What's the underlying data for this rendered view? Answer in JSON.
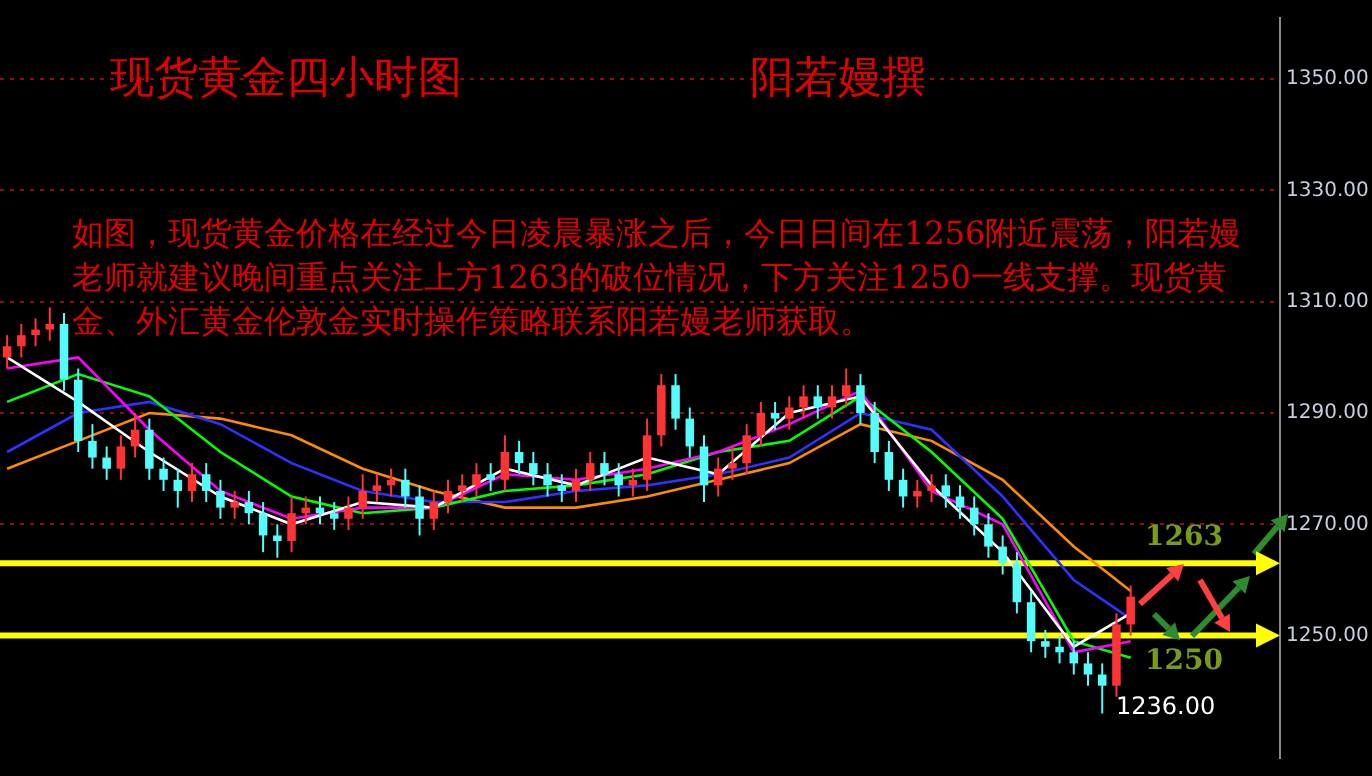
{
  "chart_data": {
    "type": "candlestick",
    "title": "现货黄金四小时图",
    "subtitle": "阳若嫚撰",
    "annotations": [
      "如图，现货黄金价格在经过今日凌晨暴涨之后，今日日间在1256附近震荡，阳若嫚老师就建议晚间重点关注上方1263的破位情况，下方关注1250一线支撑。现货黄金、外汇黄金伦敦金实时操作策略联系阳若嫚老师获取。",
      "1236.00"
    ],
    "categories": [
      null,
      null,
      null,
      null,
      null,
      null,
      null,
      null,
      null,
      null,
      null,
      null,
      null,
      null,
      null,
      null,
      null,
      null,
      null,
      null,
      null,
      null,
      null,
      null,
      null,
      null,
      null,
      null,
      null,
      null,
      null,
      null,
      null,
      null,
      null,
      null,
      null,
      null,
      null,
      null,
      null,
      null,
      null,
      null,
      null,
      null,
      null,
      null,
      null,
      null,
      null,
      null,
      null,
      null,
      null,
      null,
      null,
      null,
      null,
      null,
      null,
      null,
      null,
      null,
      null,
      null,
      null,
      null,
      null,
      null,
      null,
      null,
      null,
      null,
      null,
      null,
      null,
      null,
      null,
      null,
      null,
      null,
      null,
      null,
      null,
      null,
      null,
      null,
      null,
      null
    ],
    "ohlc": [
      [
        1300,
        1304,
        1298,
        1302
      ],
      [
        1302,
        1306,
        1300,
        1304
      ],
      [
        1304,
        1307,
        1302,
        1305
      ],
      [
        1305,
        1309,
        1303,
        1306
      ],
      [
        1306,
        1308,
        1294,
        1296
      ],
      [
        1296,
        1298,
        1283,
        1285
      ],
      [
        1285,
        1288,
        1280,
        1282
      ],
      [
        1282,
        1284,
        1278,
        1280
      ],
      [
        1280,
        1286,
        1278,
        1284
      ],
      [
        1284,
        1290,
        1282,
        1287
      ],
      [
        1287,
        1289,
        1278,
        1280
      ],
      [
        1280,
        1282,
        1276,
        1278
      ],
      [
        1278,
        1280,
        1273,
        1276
      ],
      [
        1276,
        1281,
        1274,
        1279
      ],
      [
        1279,
        1281,
        1274,
        1276
      ],
      [
        1276,
        1278,
        1271,
        1273
      ],
      [
        1273,
        1276,
        1271,
        1274
      ],
      [
        1274,
        1276,
        1270,
        1272
      ],
      [
        1272,
        1274,
        1265,
        1268
      ],
      [
        1268,
        1270,
        1264,
        1267
      ],
      [
        1267,
        1275,
        1265,
        1272
      ],
      [
        1272,
        1275,
        1270,
        1273
      ],
      [
        1273,
        1275,
        1270,
        1272
      ],
      [
        1272,
        1274,
        1269,
        1271
      ],
      [
        1271,
        1275,
        1269,
        1273
      ],
      [
        1273,
        1279,
        1271,
        1276
      ],
      [
        1276,
        1279,
        1274,
        1277
      ],
      [
        1277,
        1280,
        1275,
        1278
      ],
      [
        1278,
        1280,
        1273,
        1275
      ],
      [
        1275,
        1277,
        1268,
        1271
      ],
      [
        1271,
        1276,
        1269,
        1274
      ],
      [
        1274,
        1278,
        1272,
        1276
      ],
      [
        1276,
        1279,
        1274,
        1277
      ],
      [
        1277,
        1281,
        1275,
        1279
      ],
      [
        1279,
        1281,
        1276,
        1278
      ],
      [
        1278,
        1286,
        1276,
        1283
      ],
      [
        1283,
        1285,
        1279,
        1281
      ],
      [
        1281,
        1283,
        1277,
        1279
      ],
      [
        1279,
        1281,
        1275,
        1277
      ],
      [
        1277,
        1279,
        1274,
        1276
      ],
      [
        1276,
        1280,
        1274,
        1278
      ],
      [
        1278,
        1283,
        1276,
        1281
      ],
      [
        1281,
        1283,
        1277,
        1279
      ],
      [
        1279,
        1281,
        1275,
        1277
      ],
      [
        1277,
        1280,
        1275,
        1278
      ],
      [
        1278,
        1289,
        1276,
        1286
      ],
      [
        1286,
        1297,
        1284,
        1295
      ],
      [
        1295,
        1297,
        1287,
        1289
      ],
      [
        1289,
        1291,
        1282,
        1284
      ],
      [
        1284,
        1286,
        1274,
        1277
      ],
      [
        1277,
        1282,
        1275,
        1280
      ],
      [
        1280,
        1284,
        1278,
        1281
      ],
      [
        1281,
        1288,
        1279,
        1286
      ],
      [
        1286,
        1292,
        1284,
        1290
      ],
      [
        1290,
        1292,
        1287,
        1289
      ],
      [
        1289,
        1293,
        1287,
        1291
      ],
      [
        1291,
        1295,
        1289,
        1293
      ],
      [
        1293,
        1295,
        1289,
        1291
      ],
      [
        1291,
        1295,
        1289,
        1293
      ],
      [
        1293,
        1298,
        1291,
        1295
      ],
      [
        1295,
        1297,
        1288,
        1290
      ],
      [
        1290,
        1292,
        1281,
        1283
      ],
      [
        1283,
        1285,
        1276,
        1278
      ],
      [
        1278,
        1280,
        1273,
        1275
      ],
      [
        1275,
        1278,
        1273,
        1276
      ],
      [
        1276,
        1279,
        1274,
        1277
      ],
      [
        1277,
        1279,
        1273,
        1275
      ],
      [
        1275,
        1277,
        1271,
        1273
      ],
      [
        1273,
        1275,
        1268,
        1270
      ],
      [
        1270,
        1272,
        1264,
        1266
      ],
      [
        1266,
        1268,
        1261,
        1263
      ],
      [
        1263,
        1265,
        1254,
        1256
      ],
      [
        1256,
        1258,
        1247,
        1249
      ],
      [
        1249,
        1251,
        1246,
        1248
      ],
      [
        1248,
        1250,
        1245,
        1247
      ],
      [
        1247,
        1249,
        1243,
        1245
      ],
      [
        1245,
        1247,
        1241,
        1243
      ],
      [
        1243,
        1245,
        1236,
        1241
      ],
      [
        1241,
        1254,
        1239,
        1252
      ],
      [
        1252,
        1259,
        1250,
        1257
      ],
      null,
      null,
      null,
      null,
      null,
      null,
      null,
      null,
      null,
      null
    ],
    "colors": [
      "#ff3333",
      "#ff3333",
      "#ff3333",
      "#ff3333",
      "#54fcfc",
      "#54fcfc",
      "#54fcfc",
      "#54fcfc",
      "#ff3333",
      "#ff3333",
      "#54fcfc",
      "#54fcfc",
      "#54fcfc",
      "#ff3333",
      "#54fcfc",
      "#54fcfc",
      "#ff3333",
      "#54fcfc",
      "#54fcfc",
      "#54fcfc",
      "#ff3333",
      "#ff3333",
      "#54fcfc",
      "#54fcfc",
      "#ff3333",
      "#ff3333",
      "#ff3333",
      "#ff3333",
      "#54fcfc",
      "#54fcfc",
      "#ff3333",
      "#ff3333",
      "#ff3333",
      "#ff3333",
      "#54fcfc",
      "#ff3333",
      "#54fcfc",
      "#54fcfc",
      "#54fcfc",
      "#54fcfc",
      "#ff3333",
      "#ff3333",
      "#54fcfc",
      "#54fcfc",
      "#ff3333",
      "#ff3333",
      "#ff3333",
      "#54fcfc",
      "#54fcfc",
      "#54fcfc",
      "#ff3333",
      "#ff3333",
      "#ff3333",
      "#ff3333",
      "#54fcfc",
      "#ff3333",
      "#ff3333",
      "#54fcfc",
      "#ff3333",
      "#ff3333",
      "#54fcfc",
      "#54fcfc",
      "#54fcfc",
      "#54fcfc",
      "#ff3333",
      "#ff3333",
      "#54fcfc",
      "#54fcfc",
      "#54fcfc",
      "#54fcfc",
      "#54fcfc",
      "#54fcfc",
      "#54fcfc",
      "#54fcfc",
      "#54fcfc",
      "#54fcfc",
      "#54fcfc",
      "#54fcfc",
      "#ff3333",
      "#ff3333",
      null,
      null,
      null,
      null,
      null,
      null,
      null,
      null,
      null,
      null
    ],
    "series": [
      {
        "type": "line",
        "color": "#ffffff",
        "values": [
          1300,
          null,
          null,
          null,
          null,
          1292,
          null,
          null,
          null,
          null,
          1283,
          null,
          null,
          null,
          null,
          1275,
          null,
          null,
          null,
          null,
          1270,
          null,
          null,
          null,
          null,
          1274,
          null,
          null,
          null,
          null,
          1273,
          null,
          null,
          null,
          null,
          1280,
          null,
          null,
          null,
          null,
          1277,
          null,
          null,
          null,
          null,
          1282,
          null,
          null,
          null,
          null,
          1279,
          null,
          null,
          null,
          null,
          1290,
          null,
          null,
          null,
          null,
          1293,
          null,
          null,
          null,
          null,
          1277,
          null,
          null,
          null,
          null,
          1265,
          null,
          null,
          null,
          null,
          1248,
          null,
          null,
          null,
          1254,
          null,
          null,
          null,
          null,
          null,
          null,
          null,
          null,
          null,
          null
        ]
      },
      {
        "type": "line",
        "color": "#ff00ff",
        "values": [
          1298,
          null,
          null,
          null,
          null,
          1300,
          null,
          null,
          null,
          null,
          1287,
          null,
          null,
          null,
          null,
          1276,
          null,
          null,
          null,
          null,
          1271,
          null,
          null,
          null,
          null,
          1273,
          null,
          null,
          null,
          null,
          1273,
          null,
          null,
          null,
          null,
          1279,
          null,
          null,
          null,
          null,
          1278,
          null,
          null,
          null,
          null,
          1280,
          null,
          null,
          null,
          null,
          1283,
          null,
          null,
          null,
          null,
          1288,
          null,
          null,
          null,
          null,
          1294,
          null,
          null,
          null,
          null,
          1276,
          null,
          null,
          null,
          null,
          1270,
          null,
          null,
          null,
          null,
          1247,
          null,
          null,
          null,
          1249,
          null,
          null,
          null,
          null,
          null,
          null,
          null,
          null,
          null,
          null
        ]
      },
      {
        "type": "line",
        "color": "#00ff00",
        "values": [
          1292,
          null,
          null,
          null,
          null,
          1297,
          null,
          null,
          null,
          null,
          1293,
          null,
          null,
          null,
          null,
          1283,
          null,
          null,
          null,
          null,
          1275,
          null,
          null,
          null,
          null,
          1272,
          null,
          null,
          null,
          null,
          1273,
          null,
          null,
          null,
          null,
          1276,
          null,
          null,
          null,
          null,
          1277,
          null,
          null,
          null,
          null,
          1279,
          null,
          null,
          null,
          null,
          1283,
          null,
          null,
          null,
          null,
          1285,
          null,
          null,
          null,
          null,
          1293,
          null,
          null,
          null,
          null,
          1283,
          null,
          null,
          null,
          null,
          1271,
          null,
          null,
          null,
          null,
          1249,
          null,
          null,
          null,
          1246,
          null,
          null,
          null,
          null,
          null,
          null,
          null,
          null,
          null,
          null
        ]
      },
      {
        "type": "line",
        "color": "#3030ff",
        "values": [
          1283,
          null,
          null,
          null,
          null,
          1290,
          null,
          null,
          null,
          null,
          1292,
          null,
          null,
          null,
          null,
          1288,
          null,
          null,
          null,
          null,
          1281,
          null,
          null,
          null,
          null,
          1276,
          null,
          null,
          null,
          null,
          1274,
          null,
          null,
          null,
          null,
          1274,
          null,
          null,
          null,
          null,
          1276,
          null,
          null,
          null,
          null,
          1277,
          null,
          null,
          null,
          null,
          1279,
          null,
          null,
          null,
          null,
          1282,
          null,
          null,
          null,
          null,
          1290,
          null,
          null,
          null,
          null,
          1287,
          null,
          null,
          null,
          null,
          1275,
          null,
          null,
          null,
          null,
          1260,
          null,
          null,
          null,
          1253,
          null,
          null,
          null,
          null,
          null,
          null,
          null,
          null,
          null,
          null
        ]
      },
      {
        "type": "line",
        "color": "#ff8c00",
        "values": [
          1280,
          null,
          null,
          null,
          null,
          1285,
          null,
          null,
          null,
          null,
          1290,
          null,
          null,
          null,
          null,
          1289,
          null,
          null,
          null,
          null,
          1286,
          null,
          null,
          null,
          null,
          1280,
          null,
          null,
          null,
          null,
          1276,
          null,
          null,
          null,
          null,
          1273,
          null,
          null,
          null,
          null,
          1273,
          null,
          null,
          null,
          null,
          1275,
          null,
          null,
          null,
          null,
          1278,
          null,
          null,
          null,
          null,
          1281,
          null,
          null,
          null,
          null,
          1288,
          null,
          null,
          null,
          null,
          1285,
          null,
          null,
          null,
          null,
          1278,
          null,
          null,
          null,
          null,
          1266,
          null,
          null,
          null,
          1258,
          null,
          null,
          null,
          null,
          null,
          null,
          null,
          null,
          null,
          null
        ]
      }
    ],
    "ref_lines": [
      {
        "axis": "y",
        "value": 1263,
        "label": "1263",
        "color": "#ffff00"
      },
      {
        "axis": "y",
        "value": 1250,
        "label": "1250",
        "color": "#ffff00"
      }
    ],
    "ylim": [
      1228,
      1361
    ],
    "yticks": [
      {
        "value": 1250,
        "label": "1250.00"
      },
      {
        "value": 1270,
        "label": "1270.00"
      },
      {
        "value": 1290,
        "label": "1290.00"
      },
      {
        "value": 1310,
        "label": "1310.00"
      },
      {
        "value": 1330,
        "label": "1330.00"
      },
      {
        "value": 1350,
        "label": "1350.00"
      }
    ],
    "grid": "y",
    "tick_labels": "y"
  }
}
